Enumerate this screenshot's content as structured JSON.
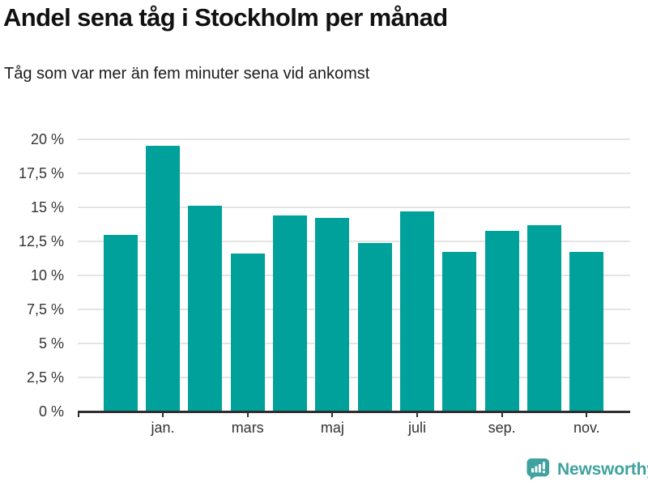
{
  "page": {
    "title": "Andel sena tåg i Stockholm per månad",
    "subtitle": "Tåg som var mer än fem minuter sena vid ankomst"
  },
  "footer": {
    "brand": "Newsworthy",
    "brand_color": "#3fa29e",
    "logo_icon": "speech-bubble-with-bar-chart-and-exclamation"
  },
  "chart_data": {
    "type": "bar",
    "title": "Andel sena tåg i Stockholm per månad",
    "subtitle": "Tåg som var mer än fem minuter sena vid ankomst",
    "unit": "%",
    "categories": [
      "",
      "jan.",
      "",
      "mars",
      "",
      "maj",
      "",
      "juli",
      "",
      "sep.",
      "",
      "nov."
    ],
    "values": [
      13.0,
      19.5,
      15.1,
      11.6,
      14.4,
      14.2,
      12.4,
      14.7,
      11.7,
      13.3,
      13.7,
      11.7
    ],
    "x_tick_labels": [
      "jan.",
      "mars",
      "maj",
      "juli",
      "sep.",
      "nov."
    ],
    "ylim": [
      0,
      20
    ],
    "yticks": [
      {
        "value": 0,
        "label": "0 %"
      },
      {
        "value": 2.5,
        "label": "2,5 %"
      },
      {
        "value": 5,
        "label": "5 %"
      },
      {
        "value": 7.5,
        "label": "7,5 %"
      },
      {
        "value": 10,
        "label": "10 %"
      },
      {
        "value": 12.5,
        "label": "12,5 %"
      },
      {
        "value": 15,
        "label": "15 %"
      },
      {
        "value": 17.5,
        "label": "17,5 %"
      },
      {
        "value": 20,
        "label": "20 %"
      }
    ],
    "grid": true,
    "legend": "none",
    "bar_color": "#00a19a",
    "colors": {
      "grid": "#e4e4e4",
      "axis": "#2f2f2f",
      "tick_label": "#333333",
      "title_text": "#111111"
    }
  }
}
